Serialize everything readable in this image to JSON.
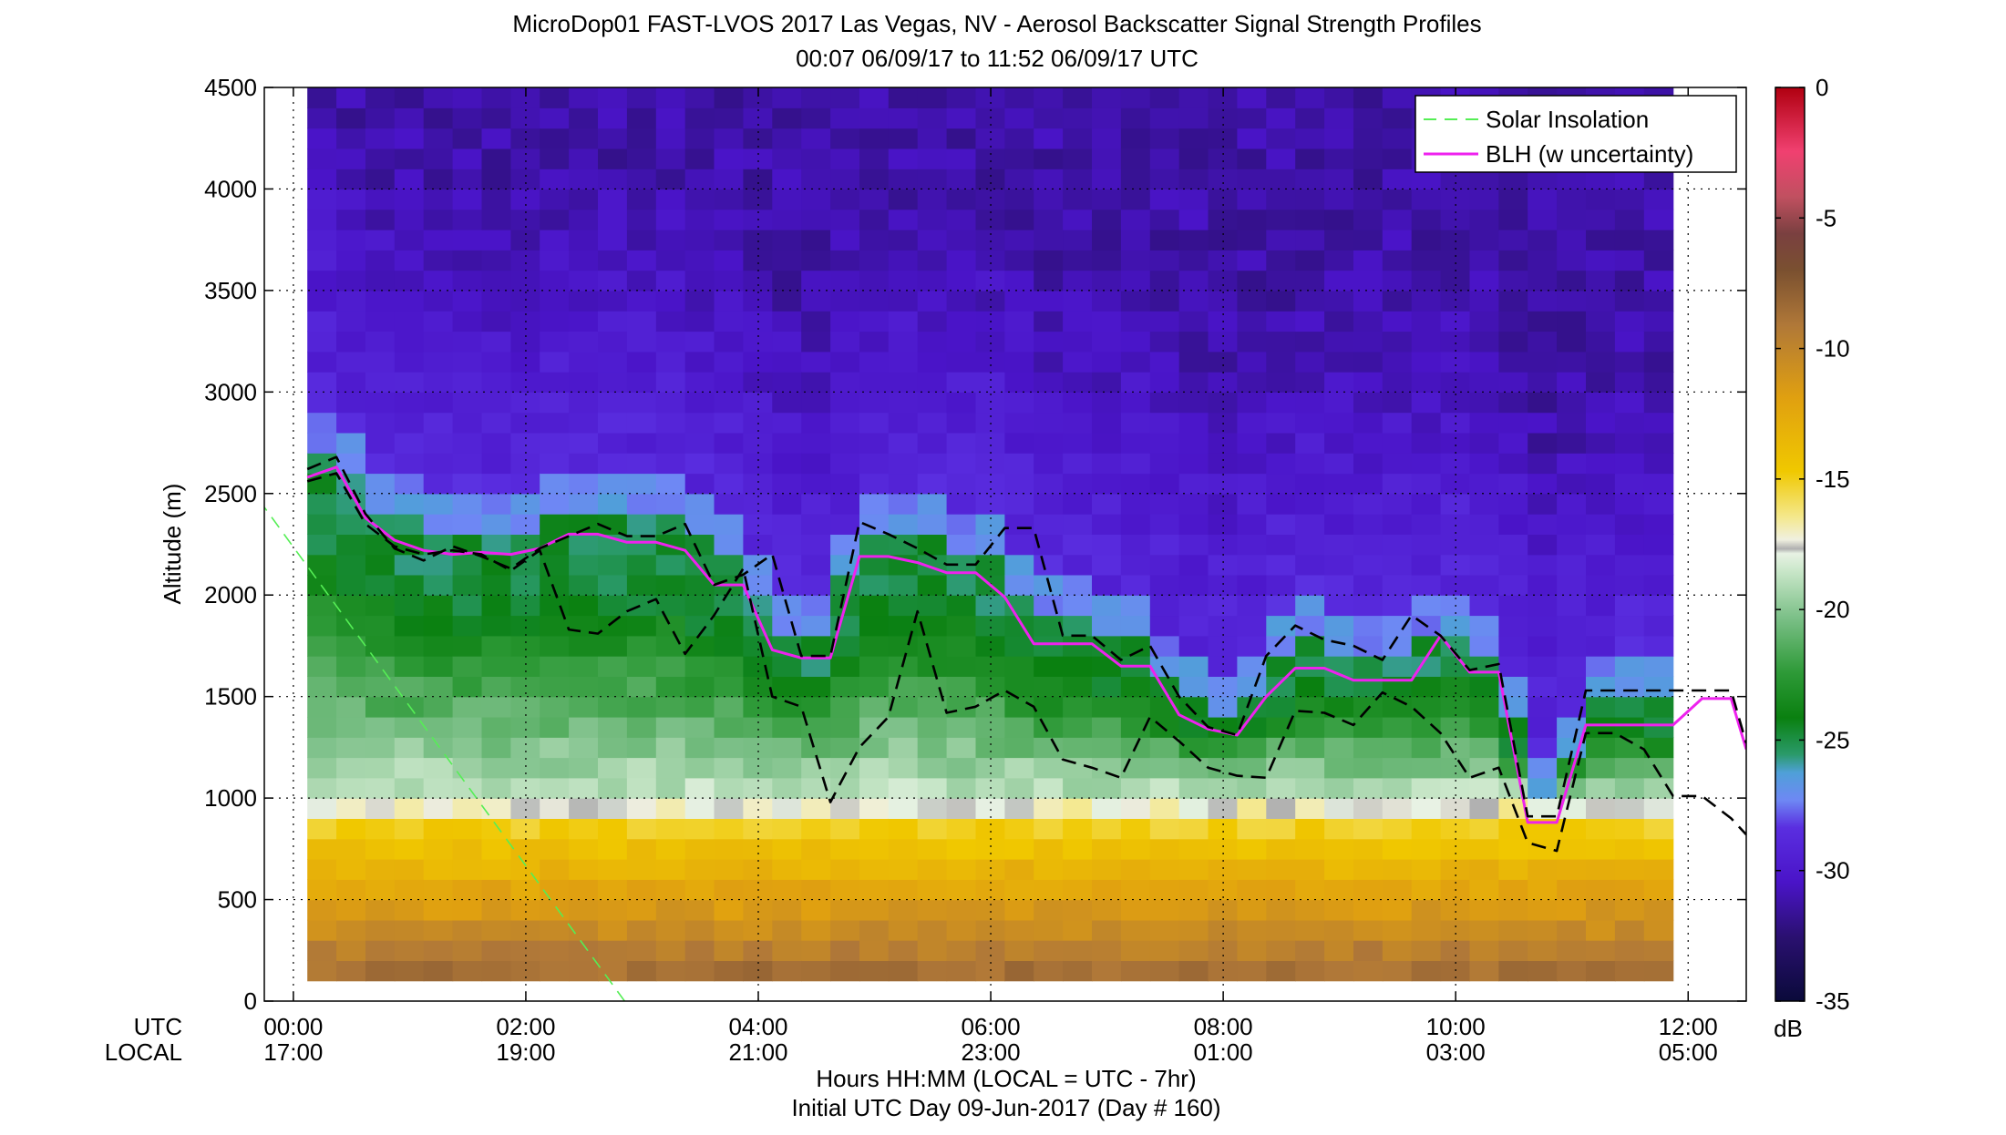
{
  "title": "MicroDop01 FAST-LVOS 2017 Las Vegas, NV - Aerosol Backscatter Signal Strength Profiles",
  "subtitle": "00:07 06/09/17 to 11:52 06/09/17  UTC",
  "chart_data": {
    "type": "heatmap",
    "title": "MicroDop01 FAST-LVOS 2017 Las Vegas, NV - Aerosol Backscatter Signal Strength Profiles",
    "subtitle": "00:07 06/09/17 to 11:52 06/09/17  UTC",
    "ylabel": "Altitude (m)",
    "xlabel": "Hours HH:MM  (LOCAL = UTC - 7hr)",
    "xlabel2": "Initial UTC Day 09-Jun-2017 (Day # 160)",
    "x_row_labels": [
      "UTC",
      "LOCAL"
    ],
    "ylim": [
      0,
      4500
    ],
    "xlim_hours": [
      -0.25,
      12.5
    ],
    "yticks": [
      0,
      500,
      1000,
      1500,
      2000,
      2500,
      3000,
      3500,
      4000,
      4500
    ],
    "xticks": [
      {
        "hour": 0,
        "utc": "00:00",
        "local": "17:00"
      },
      {
        "hour": 2,
        "utc": "02:00",
        "local": "19:00"
      },
      {
        "hour": 4,
        "utc": "04:00",
        "local": "21:00"
      },
      {
        "hour": 6,
        "utc": "06:00",
        "local": "23:00"
      },
      {
        "hour": 8,
        "utc": "08:00",
        "local": "01:00"
      },
      {
        "hour": 10,
        "utc": "10:00",
        "local": "03:00"
      },
      {
        "hour": 12,
        "utc": "12:00",
        "local": "05:00"
      }
    ],
    "grid": true,
    "legend_position": "top-right",
    "colorbar": {
      "unit": "dB",
      "min": -35,
      "max": 0,
      "ticks": [
        0,
        -5,
        -10,
        -15,
        -20,
        -25,
        -30,
        -35
      ]
    },
    "data_time_range_hours": [
      0.12,
      11.87
    ],
    "series": [
      {
        "name": "Solar Insolation",
        "style": "dashed",
        "color": "#55ee55",
        "x": [
          -0.4,
          2.85
        ],
        "y": [
          2550,
          0
        ]
      },
      {
        "name": "BLH (w uncertainty)",
        "style": "solid",
        "color": "#ee22ee",
        "x": [
          0.12,
          0.37,
          0.62,
          0.87,
          1.12,
          1.37,
          1.62,
          1.87,
          2.12,
          2.37,
          2.62,
          2.87,
          3.12,
          3.37,
          3.62,
          3.87,
          4.12,
          4.37,
          4.62,
          4.87,
          5.12,
          5.37,
          5.62,
          5.87,
          6.12,
          6.37,
          6.62,
          6.87,
          7.12,
          7.37,
          7.62,
          7.87,
          8.12,
          8.37,
          8.62,
          8.87,
          9.12,
          9.37,
          9.62,
          9.87,
          10.12,
          10.37,
          10.62,
          10.87,
          11.12,
          11.37,
          11.62,
          11.87,
          12.12,
          12.37,
          12.5
        ],
        "y": [
          2580,
          2630,
          2380,
          2270,
          2220,
          2200,
          2210,
          2200,
          2230,
          2300,
          2300,
          2260,
          2260,
          2220,
          2050,
          2050,
          1730,
          1690,
          1690,
          2190,
          2190,
          2160,
          2110,
          2110,
          1990,
          1760,
          1760,
          1760,
          1650,
          1650,
          1410,
          1340,
          1310,
          1500,
          1640,
          1640,
          1580,
          1580,
          1580,
          1800,
          1620,
          1620,
          880,
          880,
          1360,
          1360,
          1360,
          1360,
          1490,
          1490,
          1240
        ]
      },
      {
        "name": "BLH upper",
        "style": "dashed",
        "color": "#000000",
        "x": [
          0.12,
          0.37,
          0.62,
          0.87,
          1.12,
          1.37,
          1.62,
          1.87,
          2.12,
          2.37,
          2.62,
          2.87,
          3.12,
          3.37,
          3.62,
          3.87,
          4.12,
          4.37,
          4.62,
          4.87,
          5.12,
          5.37,
          5.62,
          5.87,
          6.12,
          6.37,
          6.62,
          6.87,
          7.12,
          7.37,
          7.62,
          7.87,
          8.12,
          8.37,
          8.62,
          8.87,
          9.12,
          9.37,
          9.62,
          9.87,
          10.12,
          10.37,
          10.62,
          10.87,
          11.12,
          11.37,
          11.62,
          11.87,
          12.12,
          12.37,
          12.5
        ],
        "y": [
          2620,
          2680,
          2400,
          2230,
          2170,
          2240,
          2190,
          2130,
          2230,
          2290,
          2350,
          2290,
          2290,
          2350,
          2050,
          2100,
          2200,
          1700,
          1700,
          2360,
          2300,
          2230,
          2150,
          2150,
          2330,
          2330,
          1800,
          1800,
          1680,
          1750,
          1500,
          1350,
          1310,
          1700,
          1850,
          1780,
          1750,
          1680,
          1900,
          1800,
          1630,
          1660,
          910,
          910,
          1530,
          1530,
          1530,
          1530,
          1530,
          1530,
          1270
        ]
      },
      {
        "name": "BLH lower",
        "style": "dashed",
        "color": "#000000",
        "x": [
          0.12,
          0.37,
          0.62,
          0.87,
          1.12,
          1.37,
          1.62,
          1.87,
          2.12,
          2.37,
          2.62,
          2.87,
          3.12,
          3.37,
          3.62,
          3.87,
          4.12,
          4.37,
          4.62,
          4.87,
          5.12,
          5.37,
          5.62,
          5.87,
          6.12,
          6.37,
          6.62,
          6.87,
          7.12,
          7.37,
          7.62,
          7.87,
          8.12,
          8.37,
          8.62,
          8.87,
          9.12,
          9.37,
          9.62,
          9.87,
          10.12,
          10.37,
          10.62,
          10.87,
          11.12,
          11.37,
          11.62,
          11.87,
          12.12,
          12.37,
          12.5
        ],
        "y": [
          2560,
          2600,
          2350,
          2240,
          2200,
          2220,
          2200,
          2120,
          2220,
          1830,
          1810,
          1920,
          1980,
          1710,
          1900,
          2130,
          1500,
          1450,
          980,
          1250,
          1400,
          1920,
          1420,
          1450,
          1530,
          1450,
          1190,
          1150,
          1100,
          1400,
          1280,
          1150,
          1110,
          1100,
          1430,
          1420,
          1360,
          1520,
          1450,
          1320,
          1100,
          1150,
          780,
          740,
          1320,
          1320,
          1240,
          1010,
          1010,
          900,
          820
        ]
      }
    ]
  }
}
